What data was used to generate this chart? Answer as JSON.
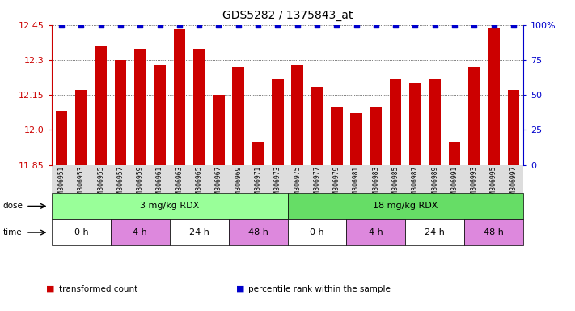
{
  "title": "GDS5282 / 1375843_at",
  "samples": [
    "GSM306951",
    "GSM306953",
    "GSM306955",
    "GSM306957",
    "GSM306959",
    "GSM306961",
    "GSM306963",
    "GSM306965",
    "GSM306967",
    "GSM306969",
    "GSM306971",
    "GSM306973",
    "GSM306975",
    "GSM306977",
    "GSM306979",
    "GSM306981",
    "GSM306983",
    "GSM306985",
    "GSM306987",
    "GSM306989",
    "GSM306991",
    "GSM306993",
    "GSM306995",
    "GSM306997"
  ],
  "bar_values": [
    12.08,
    12.17,
    12.36,
    12.3,
    12.35,
    12.28,
    12.43,
    12.35,
    12.15,
    12.27,
    11.95,
    12.22,
    12.28,
    12.18,
    12.1,
    12.07,
    12.1,
    12.22,
    12.2,
    12.22,
    11.95,
    12.27,
    12.44,
    12.17
  ],
  "percentile_values": [
    100,
    100,
    100,
    100,
    100,
    100,
    100,
    100,
    100,
    100,
    100,
    100,
    100,
    100,
    100,
    100,
    100,
    100,
    100,
    100,
    100,
    100,
    100,
    100
  ],
  "bar_color": "#cc0000",
  "percentile_color": "#0000cc",
  "ylim": [
    11.85,
    12.45
  ],
  "yticks": [
    11.85,
    12.0,
    12.15,
    12.3,
    12.45
  ],
  "right_yticks": [
    0,
    25,
    50,
    75,
    100
  ],
  "right_ylim": [
    0,
    100
  ],
  "dose_labels": [
    {
      "text": "3 mg/kg RDX",
      "start": 0,
      "end": 12,
      "color": "#99ff99"
    },
    {
      "text": "18 mg/kg RDX",
      "start": 12,
      "end": 24,
      "color": "#66dd66"
    }
  ],
  "time_labels": [
    {
      "text": "0 h",
      "start": 0,
      "end": 3,
      "color": "#ffffff"
    },
    {
      "text": "4 h",
      "start": 3,
      "end": 6,
      "color": "#dd88dd"
    },
    {
      "text": "24 h",
      "start": 6,
      "end": 9,
      "color": "#ffffff"
    },
    {
      "text": "48 h",
      "start": 9,
      "end": 12,
      "color": "#dd88dd"
    },
    {
      "text": "0 h",
      "start": 12,
      "end": 15,
      "color": "#ffffff"
    },
    {
      "text": "4 h",
      "start": 15,
      "end": 18,
      "color": "#dd88dd"
    },
    {
      "text": "24 h",
      "start": 18,
      "end": 21,
      "color": "#ffffff"
    },
    {
      "text": "48 h",
      "start": 21,
      "end": 24,
      "color": "#dd88dd"
    }
  ],
  "legend_items": [
    {
      "label": "transformed count",
      "color": "#cc0000"
    },
    {
      "label": "percentile rank within the sample",
      "color": "#0000cc"
    }
  ]
}
